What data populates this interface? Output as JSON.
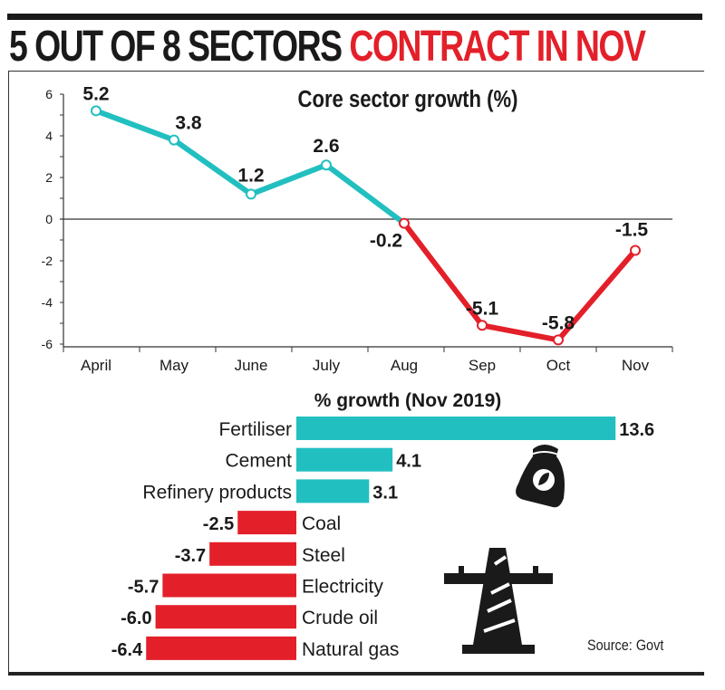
{
  "header": {
    "title_black": "5 OUT OF 8 SECTORS",
    "title_red": "CONTRACT IN NOV"
  },
  "source": "Source: Govt",
  "colors": {
    "positive": "#22bfc0",
    "negative": "#e3202a",
    "text": "#1a1a1a"
  },
  "icons": [
    "fertiliser-bag-icon",
    "power-tower-icon"
  ],
  "chart_data": [
    {
      "type": "line",
      "title": "Core sector growth (%)",
      "categories": [
        "April",
        "May",
        "June",
        "July",
        "Aug",
        "Sep",
        "Oct",
        "Nov"
      ],
      "values": [
        5.2,
        3.8,
        1.2,
        2.6,
        -0.2,
        -5.1,
        -5.8,
        -1.5
      ],
      "labels": [
        "5.2",
        "3.8",
        "1.2",
        "2.6",
        "-0.2",
        "-5.1",
        "-5.8",
        "-1.5"
      ],
      "ylim": [
        -6,
        6
      ],
      "yticks": [
        "6",
        "4",
        "2",
        "0",
        "-2",
        "-4",
        "-6"
      ],
      "grid": false
    },
    {
      "type": "bar",
      "orientation": "horizontal",
      "title": "% growth (Nov 2019)",
      "categories": [
        "Fertiliser",
        "Cement",
        "Refinery products",
        "Coal",
        "Steel",
        "Electricity",
        "Crude oil",
        "Natural gas"
      ],
      "values": [
        13.6,
        4.1,
        3.1,
        -2.5,
        -3.7,
        -5.7,
        -6.0,
        -6.4
      ],
      "labels": [
        "13.6",
        "4.1",
        "3.1",
        "-2.5",
        "-3.7",
        "-5.7",
        "-6.0",
        "-6.4"
      ]
    }
  ]
}
